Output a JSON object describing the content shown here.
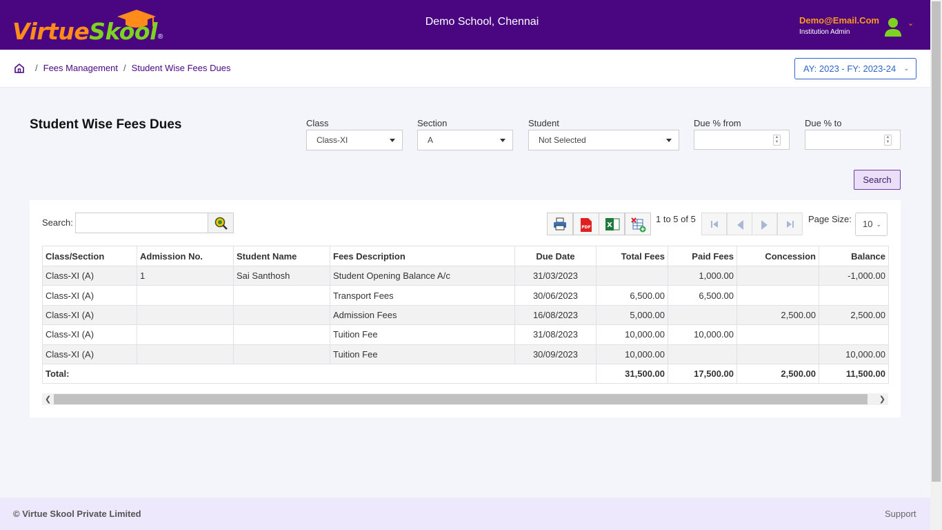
{
  "header": {
    "logo_part1": "Virtue",
    "logo_part2": "Skool",
    "logo_reg": "®",
    "school_name": "Demo School, Chennai",
    "user_email": "Demo@Email.Com",
    "user_role": "Institution Admin",
    "brand_color": "#4a0681"
  },
  "breadcrumb": {
    "items": [
      "Fees Management",
      "Student Wise Fees Dues"
    ],
    "separator": "/"
  },
  "academic_year": "AY: 2023 - FY: 2023-24",
  "page_title": "Student Wise Fees Dues",
  "filters": {
    "class_label": "Class",
    "class_value": "Class-XI",
    "section_label": "Section",
    "section_value": "A",
    "student_label": "Student",
    "student_value": "Not Selected",
    "due_from_label": "Due % from",
    "due_to_label": "Due % to",
    "search_button": "Search"
  },
  "grid_toolbar": {
    "search_label": "Search:",
    "pager_text": "1 to 5 of 5",
    "page_size_label": "Page Size:",
    "page_size_value": "10"
  },
  "table": {
    "columns": [
      "Class/Section",
      "Admission No.",
      "Student Name",
      "Fees Description",
      "Due Date",
      "Total Fees",
      "Paid Fees",
      "Concession",
      "Balance"
    ],
    "rows": [
      [
        "Class-XI (A)",
        "1",
        "Sai Santhosh",
        "Student Opening Balance A/c",
        "31/03/2023",
        "",
        "1,000.00",
        "",
        "-1,000.00"
      ],
      [
        "Class-XI (A)",
        "",
        "",
        "Transport Fees",
        "30/06/2023",
        "6,500.00",
        "6,500.00",
        "",
        ""
      ],
      [
        "Class-XI (A)",
        "",
        "",
        "Admission Fees",
        "16/08/2023",
        "5,000.00",
        "",
        "2,500.00",
        "2,500.00"
      ],
      [
        "Class-XI (A)",
        "",
        "",
        "Tuition Fee",
        "31/08/2023",
        "10,000.00",
        "10,000.00",
        "",
        ""
      ],
      [
        "Class-XI (A)",
        "",
        "",
        "Tuition Fee",
        "30/09/2023",
        "10,000.00",
        "",
        "",
        "10,000.00"
      ]
    ],
    "total_label": "Total:",
    "totals": [
      "31,500.00",
      "17,500.00",
      "2,500.00",
      "11,500.00"
    ]
  },
  "footer": {
    "copyright": "© Virtue Skool Private Limited",
    "support": "Support"
  }
}
